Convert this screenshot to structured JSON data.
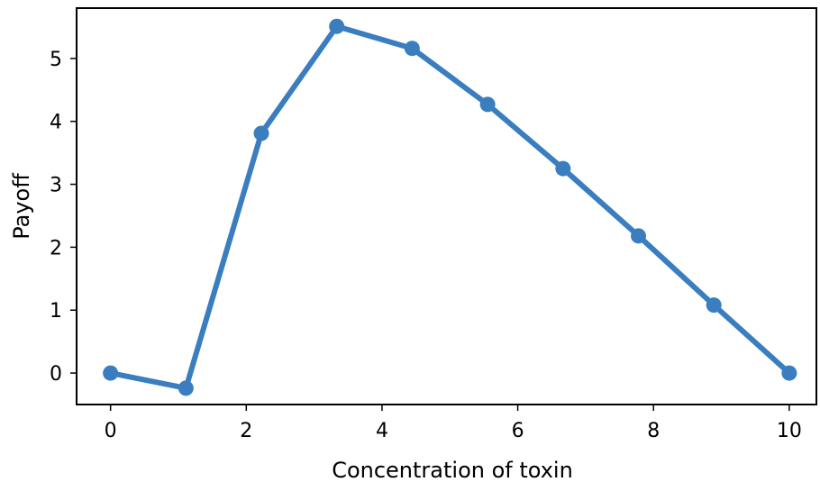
{
  "chart_data": {
    "type": "line",
    "xlabel": "Concentration of toxin",
    "ylabel": "Payoff",
    "xlim": [
      -0.5,
      10.4
    ],
    "ylim": [
      -0.5,
      5.8
    ],
    "xticks": [
      0,
      2,
      4,
      6,
      8,
      10
    ],
    "yticks": [
      0,
      1,
      2,
      3,
      4,
      5
    ],
    "grid": false,
    "series": [
      {
        "color": "#3a7ebf",
        "x": [
          0,
          1.111,
          2.222,
          3.333,
          4.444,
          5.556,
          6.667,
          7.778,
          8.889,
          10
        ],
        "y": [
          0,
          -0.24,
          3.81,
          5.51,
          5.16,
          4.27,
          3.25,
          2.18,
          1.08,
          0
        ]
      }
    ]
  }
}
